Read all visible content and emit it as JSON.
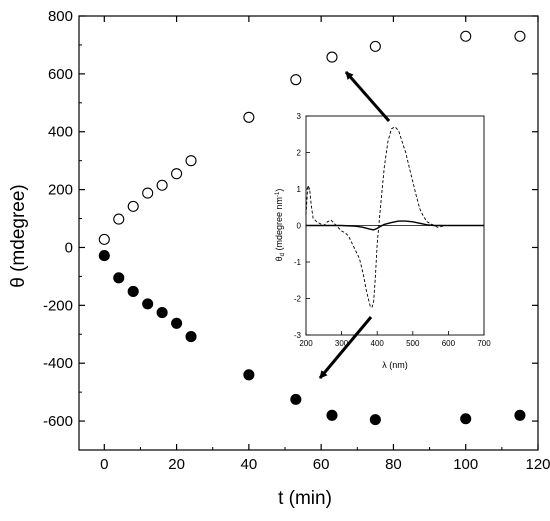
{
  "chart_data": {
    "type": "scatter",
    "xlabel": "t (min)",
    "ylabel": "θ (mdegree)",
    "xlim": [
      -7,
      120
    ],
    "ylim": [
      -700,
      800
    ],
    "xticks": [
      0,
      20,
      40,
      60,
      80,
      100,
      120
    ],
    "yticks": [
      -600,
      -400,
      -200,
      0,
      200,
      400,
      600,
      800
    ],
    "series": [
      {
        "marker": "open-circle",
        "x": [
          0,
          4,
          8,
          12,
          16,
          20,
          24,
          40,
          53,
          63,
          75,
          100,
          115
        ],
        "y": [
          28,
          98,
          142,
          188,
          215,
          255,
          300,
          450,
          580,
          658,
          695,
          730,
          730
        ]
      },
      {
        "marker": "filled-circle",
        "x": [
          0,
          4,
          8,
          12,
          16,
          20,
          24,
          40,
          53,
          63,
          75,
          100,
          115
        ],
        "y": [
          -28,
          -105,
          -152,
          -195,
          -225,
          -262,
          -308,
          -440,
          -525,
          -580,
          -595,
          -592,
          -580
        ]
      }
    ],
    "inset": {
      "type": "line",
      "xlabel": "λ (nm)",
      "ylabel": "θ",
      "ylabel_subscript": "d",
      "ylabel_units": " (mdegree nm",
      "ylabel_superscript": "-1",
      "ylabel_close": ")",
      "xlim": [
        200,
        700
      ],
      "ylim": [
        -3,
        3
      ],
      "xticks": [
        200,
        300,
        400,
        500,
        600,
        700
      ],
      "yticks": [
        -3,
        -2,
        -1,
        0,
        1,
        2,
        3
      ],
      "series": [
        {
          "style": "dashed",
          "x": [
            200,
            205,
            210,
            215,
            220,
            230,
            240,
            250,
            260,
            270,
            280,
            290,
            300,
            310,
            320,
            330,
            340,
            350,
            360,
            370,
            380,
            385,
            390,
            395,
            400,
            410,
            420,
            430,
            440,
            450,
            460,
            470,
            480,
            490,
            500,
            510,
            520,
            530,
            540,
            550,
            560,
            570,
            580,
            590,
            600,
            700
          ],
          "y": [
            0.3,
            1.1,
            1.0,
            0.55,
            0.2,
            0.1,
            0.05,
            0.0,
            0.1,
            0.15,
            0.05,
            -0.05,
            -0.15,
            -0.2,
            -0.3,
            -0.5,
            -0.7,
            -0.9,
            -1.3,
            -1.8,
            -2.2,
            -2.25,
            -2.1,
            -1.4,
            -0.5,
            0.6,
            1.6,
            2.3,
            2.65,
            2.7,
            2.6,
            2.3,
            2.0,
            1.6,
            1.2,
            0.8,
            0.45,
            0.25,
            0.1,
            0.05,
            0.0,
            -0.05,
            -0.03,
            0.0,
            0.0,
            0.0
          ]
        },
        {
          "style": "solid",
          "x": [
            200,
            250,
            300,
            340,
            360,
            380,
            390,
            400,
            410,
            420,
            440,
            460,
            480,
            500,
            520,
            540,
            560,
            600,
            700
          ],
          "y": [
            0.0,
            0.0,
            0.0,
            -0.02,
            -0.05,
            -0.1,
            -0.12,
            -0.08,
            -0.02,
            0.03,
            0.08,
            0.12,
            0.12,
            0.1,
            0.06,
            0.02,
            0.0,
            0.0,
            0.0
          ]
        }
      ]
    }
  }
}
